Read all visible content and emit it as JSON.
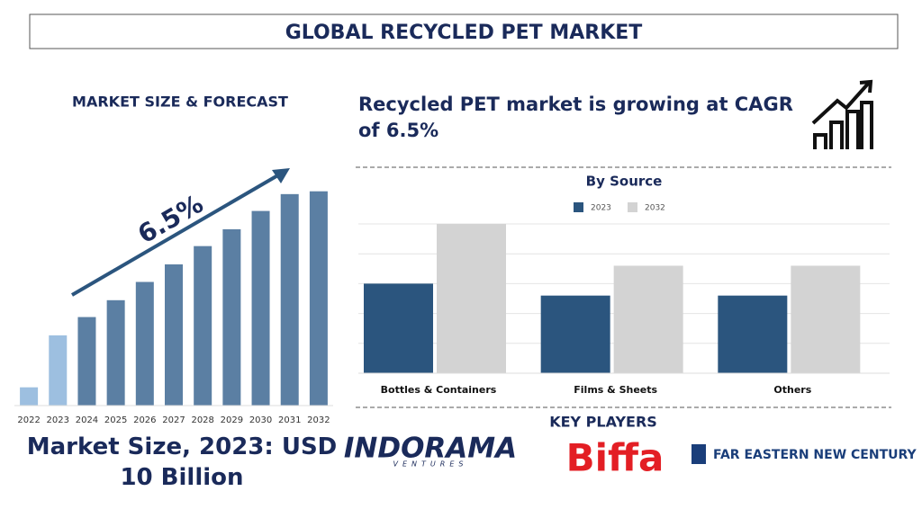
{
  "title": "GLOBAL RECYCLED PET MARKET",
  "left": {
    "heading": "MARKET SIZE & FORECAST",
    "cagr_label": "6.5%",
    "summary": "Market Size, 2023: USD 10 Billion"
  },
  "right": {
    "headline": "Recycled PET market is growing at CAGR of 6.5%"
  },
  "key_players": {
    "heading": "KEY PLAYERS",
    "logos": [
      "INDORAMA",
      "VENTURES",
      "Biffa",
      "FAR EASTERN NEW CENTURY"
    ]
  },
  "chart_data": [
    {
      "type": "bar",
      "categories": [
        "2022",
        "2023",
        "2024",
        "2025",
        "2026",
        "2027",
        "2028",
        "2029",
        "2030",
        "2031",
        "2032"
      ],
      "values": [
        2.6,
        10,
        12.6,
        15,
        17.6,
        20.1,
        22.7,
        25.1,
        27.7,
        30.1,
        30.5
      ],
      "colors": [
        "#9dbfe0",
        "#9dbfe0",
        "#5b7fa3",
        "#5b7fa3",
        "#5b7fa3",
        "#5b7fa3",
        "#5b7fa3",
        "#5b7fa3",
        "#5b7fa3",
        "#5b7fa3",
        "#5b7fa3"
      ],
      "ylim": [
        0,
        32
      ]
    },
    {
      "type": "bar",
      "title": "By Source",
      "categories": [
        "Bottles & Containers",
        "Films & Sheets",
        "Others"
      ],
      "series": [
        {
          "name": "2023",
          "color": "#2b557e",
          "values": [
            3,
            2.6,
            2.6
          ]
        },
        {
          "name": "2032",
          "color": "#d3d3d3",
          "values": [
            5,
            3.6,
            3.6
          ]
        }
      ],
      "ylim": [
        0,
        5
      ],
      "yticks": [
        0,
        1,
        2,
        3,
        4,
        5
      ],
      "grid": true,
      "legend": "top"
    }
  ]
}
